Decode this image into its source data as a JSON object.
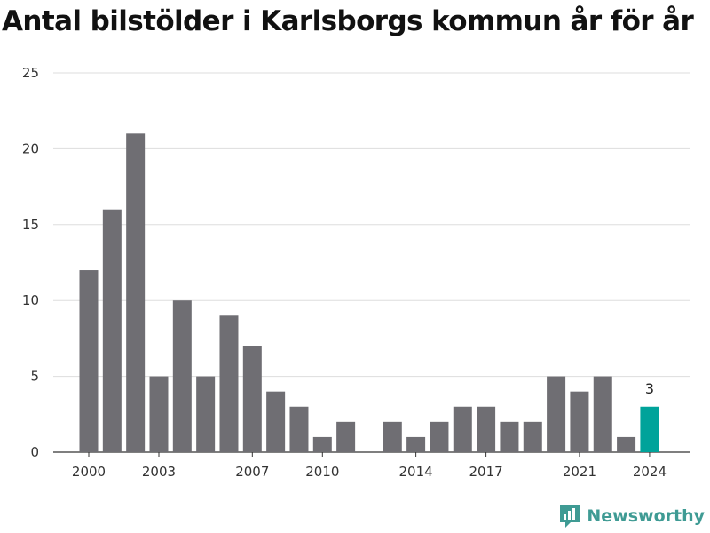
{
  "title": "Antal bilstölder i Karlsborgs kommun år för år",
  "brand": {
    "name": "Newsworthy",
    "icon": "newsworthy-logo-icon",
    "color": "#3f9b94"
  },
  "colors": {
    "bar": "#6f6e73",
    "highlight": "#00a39a",
    "grid": "#dddddd"
  },
  "chart_data": {
    "type": "bar",
    "title": "Antal bilstölder i Karlsborgs kommun år för år",
    "xlabel": "",
    "ylabel": "",
    "categories": [
      "2000",
      "2001",
      "2002",
      "2003",
      "2004",
      "2005",
      "2006",
      "2007",
      "2008",
      "2009",
      "2010",
      "2011",
      "2012",
      "2013",
      "2014",
      "2015",
      "2016",
      "2017",
      "2018",
      "2019",
      "2020",
      "2021",
      "2022",
      "2023",
      "2024"
    ],
    "values": [
      12,
      16,
      21,
      5,
      10,
      5,
      9,
      7,
      4,
      3,
      1,
      2,
      null,
      2,
      1,
      2,
      3,
      3,
      2,
      2,
      5,
      4,
      5,
      1,
      3
    ],
    "x_tick_labels": [
      "2000",
      "2003",
      "2007",
      "2010",
      "2014",
      "2017",
      "2021",
      "2024"
    ],
    "y_ticks": [
      0,
      5,
      10,
      15,
      20,
      25
    ],
    "ylim": [
      0,
      25
    ],
    "grid": true,
    "highlight_category": "2024",
    "data_labels": [
      {
        "category": "2024",
        "text": "3"
      }
    ]
  }
}
